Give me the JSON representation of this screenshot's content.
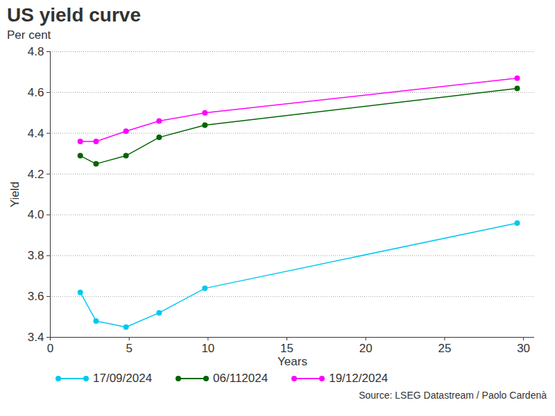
{
  "chart_data": {
    "type": "line",
    "title": "US yield curve",
    "subtitle": "Per cent",
    "x_label": "Years",
    "y_label": "Yield",
    "source": "Source: LSEG Datastream / Paolo Cardenà",
    "x": [
      1.9,
      2.9,
      4.8,
      6.9,
      9.8,
      29.6
    ],
    "series": [
      {
        "name": "17/09/2024",
        "color": "#00c8f0",
        "marker": "circle",
        "values": [
          3.62,
          3.48,
          3.45,
          3.52,
          3.64,
          3.96
        ]
      },
      {
        "name": "06/112024",
        "color": "#006400",
        "marker": "circle",
        "values": [
          4.29,
          4.25,
          4.29,
          4.38,
          4.44,
          4.62
        ]
      },
      {
        "name": "19/12/2024",
        "color": "#ff00ff",
        "marker": "circle",
        "values": [
          4.36,
          4.36,
          4.41,
          4.46,
          4.5,
          4.67
        ]
      }
    ],
    "xlim": [
      0,
      30.7
    ],
    "xticks": [
      0,
      5,
      10,
      15,
      20,
      25,
      30
    ],
    "ylim": [
      3.4,
      4.8
    ],
    "yticks": [
      3.4,
      3.6,
      3.8,
      {
        "value": 4,
        "label": "4.0"
      },
      4.2,
      4.4,
      4.6,
      4.8
    ],
    "grid": true,
    "legend": "bottom"
  }
}
